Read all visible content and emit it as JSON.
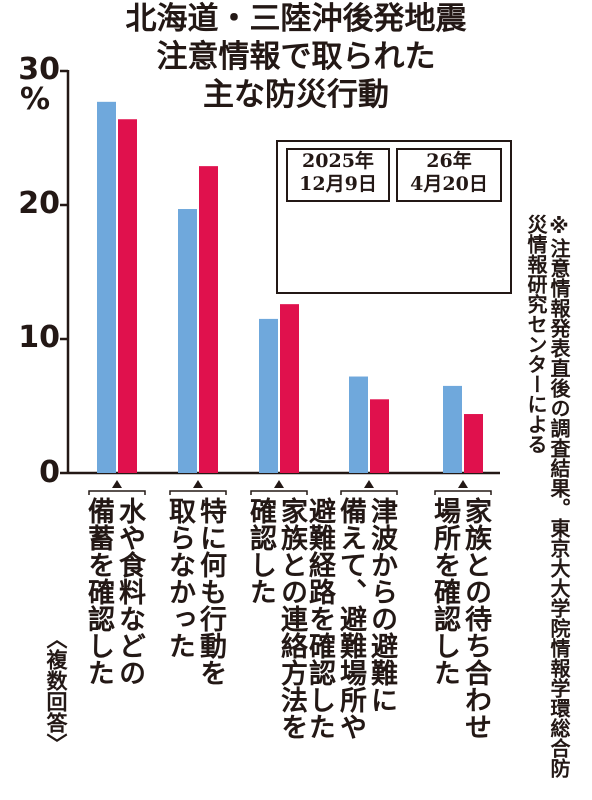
{
  "title_lines": [
    "北海道・三陸沖後発地震",
    "注意情報で取られた",
    "主な防災行動"
  ],
  "unit": "%",
  "note": "複数回答",
  "source": "※注意情報発表直後の調査結果。東京大大学院情報学環総合防災情報研究センターによる",
  "legend": {
    "series1": [
      "2025年",
      "12月9日"
    ],
    "series2": [
      "26年",
      "4月20日"
    ]
  },
  "chart_data": {
    "type": "bar",
    "title": "北海道・三陸沖後発地震注意情報で取られた主な防災行動",
    "ylabel": "%",
    "ylim": [
      0,
      30
    ],
    "yticks": [
      "0",
      "10",
      "20",
      "30"
    ],
    "categories": [
      "水や食料などの備蓄を確認した",
      "特に何も行動を取らなかった",
      "家族との連絡方法を確認した",
      "津波からの避難に備えて、避難場所や避難経路を確認した",
      "家族との待ち合わせ場所を確認した"
    ],
    "category_columns": [
      [
        "水や食料などの",
        "備蓄を確認した"
      ],
      [
        "特に何も行動を",
        "取らなかった"
      ],
      [
        "家族との連絡方法を",
        "確認した"
      ],
      [
        "津波からの避難に",
        "備えて、避難場所や",
        "避難経路を確認した"
      ],
      [
        "家族との待ち合わせ",
        "場所を確認した"
      ]
    ],
    "series": [
      {
        "name": "2025年12月9日",
        "color": "#6fa8dc",
        "values": [
          27.7,
          19.7,
          11.5,
          7.2,
          6.5
        ]
      },
      {
        "name": "26年4月20日",
        "color": "#e0114d",
        "values": [
          26.4,
          22.9,
          12.6,
          5.5,
          4.4
        ]
      }
    ],
    "grid": false,
    "legend_position": "upper-right inset"
  }
}
